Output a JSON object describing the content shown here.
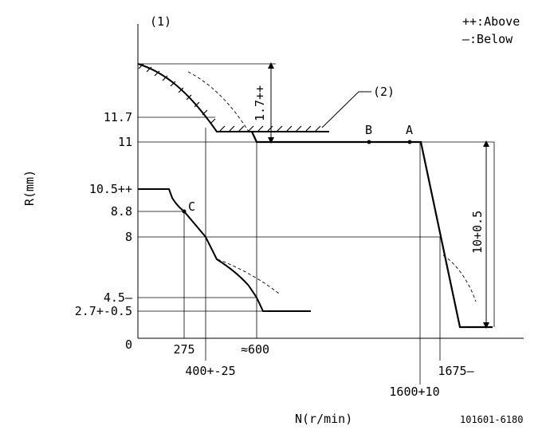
{
  "figure": {
    "label_1": "(1)",
    "label_2": "(2)",
    "legend_above": "++:Above",
    "legend_below": "—:Below",
    "y_axis_label": "R(mm)",
    "x_axis_label": "N(r/min)",
    "figure_code": "101601-6180"
  },
  "y_ticks": {
    "t11_7": "11.7",
    "t11": "11",
    "t10_5": "10.5++",
    "t8_8": "8.8",
    "t8": "8",
    "t4_5": "4.5—",
    "t2_7": "2.7+-0.5",
    "t0": "0"
  },
  "x_ticks": {
    "t275": "275",
    "t400": "400+-25",
    "t600": "≈600",
    "t1600": "1600+10",
    "t1675": "1675—"
  },
  "dimensions": {
    "upper": "1.7++",
    "right": "10+0.5"
  },
  "points": {
    "a": "A",
    "b": "B",
    "c": "C"
  },
  "colors": {
    "line": "#000000",
    "background": "#ffffff"
  }
}
